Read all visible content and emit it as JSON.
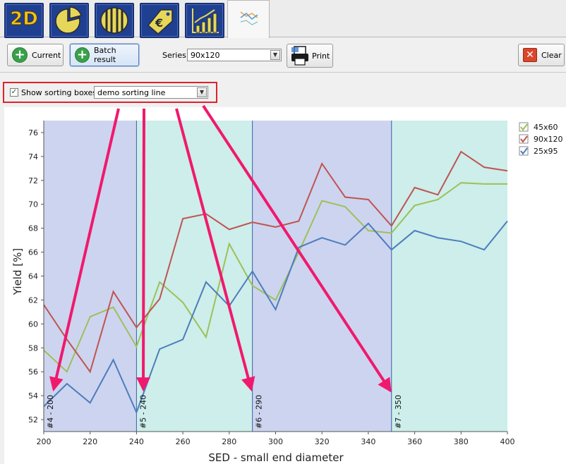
{
  "tabs": [
    {
      "label": "2D",
      "icon": "2d-icon"
    },
    {
      "label": "",
      "icon": "pie-chart-icon"
    },
    {
      "label": "",
      "icon": "log-section-icon"
    },
    {
      "label": "",
      "icon": "price-tag-euro-icon"
    },
    {
      "label": "",
      "icon": "bar-trend-icon"
    },
    {
      "label": "",
      "icon": "line-chart-icon"
    }
  ],
  "toolbar": {
    "current_label": "Current",
    "batch_label": "Batch result",
    "series_label": "Series",
    "series_value": "90x120",
    "print_label": "Print",
    "clear_label": "Clear"
  },
  "options": {
    "show_sorting_label": "Show sorting boxes",
    "show_sorting_checked": true,
    "sorting_line_value": "demo sorting line"
  },
  "colors": {
    "band_blue": "#cdd4ef",
    "band_teal": "#cdeeea",
    "series_green": "#9dc05a",
    "series_red": "#bf5452",
    "series_blue": "#4d7dbc",
    "annotation_arrow": "#f0196e"
  },
  "chart_data": {
    "type": "line",
    "xlabel": "SED - small end diameter",
    "ylabel": "Yield [%]",
    "xlim": [
      200,
      400
    ],
    "ylim": [
      51,
      77
    ],
    "xticks": [
      "200",
      "220",
      "240",
      "260",
      "280",
      "300",
      "320",
      "340",
      "360",
      "380",
      "400"
    ],
    "yticks": [
      "52",
      "54",
      "56",
      "58",
      "60",
      "62",
      "64",
      "66",
      "68",
      "70",
      "72",
      "74",
      "76"
    ],
    "legend_position": "top-right",
    "sorting_boxes": [
      {
        "label": "#4 - 200",
        "from": 200,
        "to": 240
      },
      {
        "label": "#5 - 240",
        "from": 240,
        "to": 290
      },
      {
        "label": "#6 - 290",
        "from": 290,
        "to": 350
      },
      {
        "label": "#7 - 350",
        "from": 350,
        "to": 400
      }
    ],
    "x": [
      200,
      210,
      220,
      230,
      240,
      250,
      260,
      270,
      280,
      290,
      300,
      310,
      320,
      330,
      340,
      350,
      360,
      370,
      380,
      390,
      400
    ],
    "series": [
      {
        "name": "45x60",
        "values": [
          57.8,
          56.0,
          60.6,
          61.4,
          58.1,
          63.5,
          61.8,
          58.9,
          66.7,
          63.2,
          62.0,
          66.0,
          70.3,
          69.8,
          67.8,
          67.6,
          69.9,
          70.4,
          71.8,
          71.7,
          71.7
        ]
      },
      {
        "name": "90x120",
        "values": [
          61.6,
          58.7,
          56.0,
          62.7,
          59.7,
          62.1,
          68.8,
          69.2,
          67.9,
          68.5,
          68.1,
          68.6,
          73.4,
          70.6,
          70.4,
          68.2,
          71.4,
          70.8,
          74.4,
          73.1,
          72.8
        ]
      },
      {
        "name": "25x95",
        "values": [
          53.1,
          55.0,
          53.4,
          57.0,
          52.6,
          57.9,
          58.7,
          63.5,
          61.5,
          64.4,
          61.2,
          66.4,
          67.2,
          66.6,
          68.4,
          66.2,
          67.8,
          67.2,
          66.9,
          66.2,
          68.6
        ]
      }
    ]
  }
}
